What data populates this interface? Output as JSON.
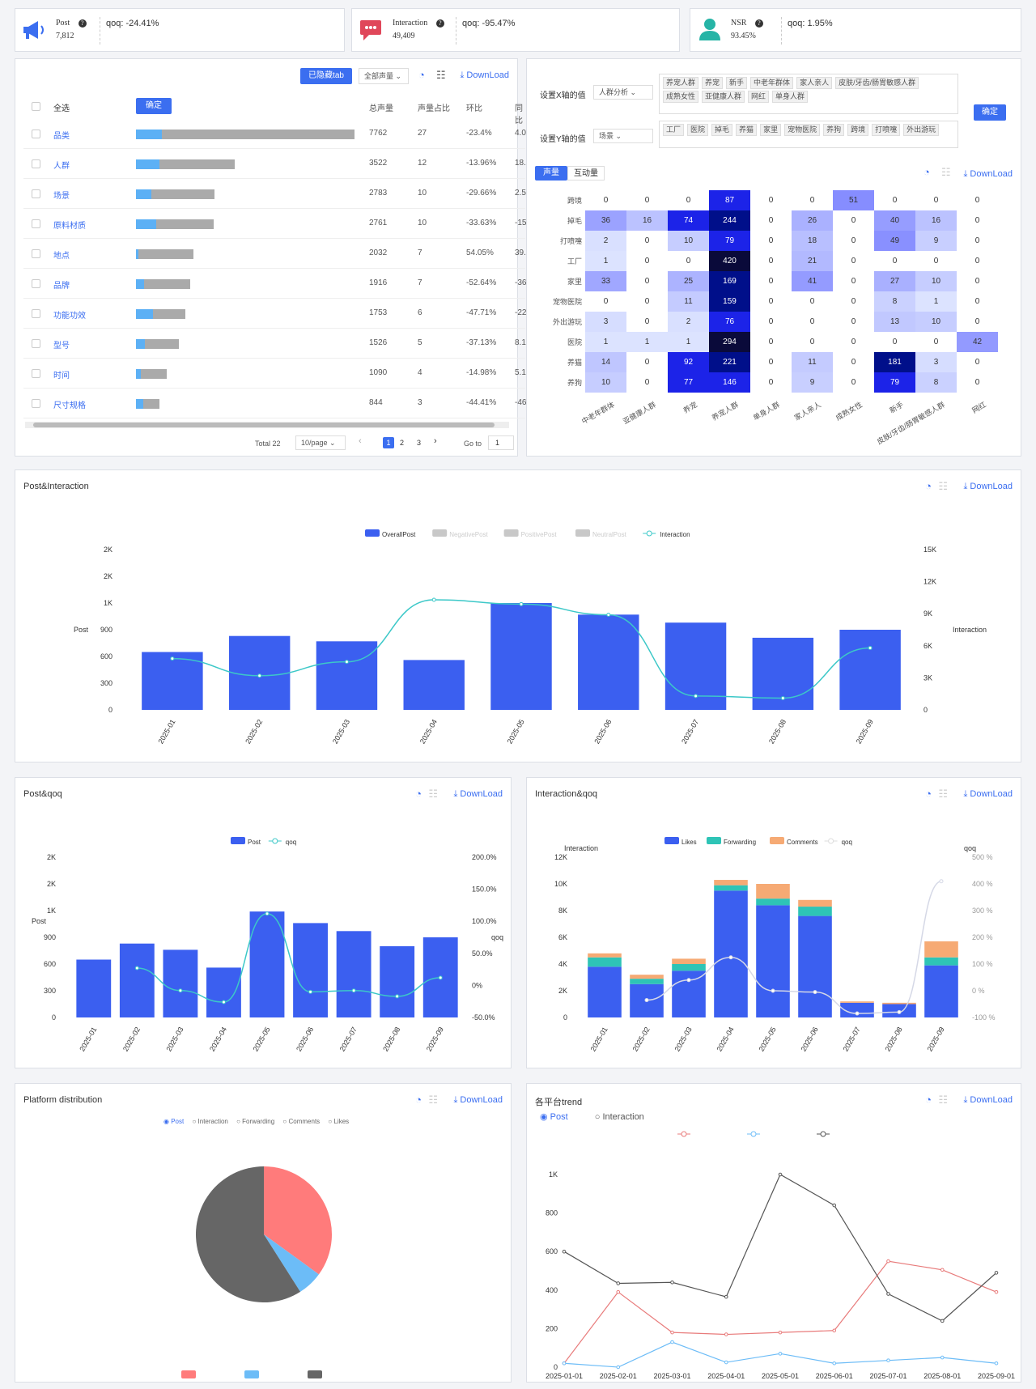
{
  "kpis": [
    {
      "label": "Post",
      "value": "7,812",
      "qoq": "qoq: -24.41%",
      "icon": "megaphone-icon",
      "color": "#3b6ef0"
    },
    {
      "label": "Interaction",
      "value": "49,409",
      "qoq": "qoq: -95.47%",
      "icon": "chat-bubble-icon",
      "color": "#e0475a"
    },
    {
      "label": "NSR",
      "value": "93.45%",
      "qoq": "qoq: 1.95%",
      "icon": "user-icon",
      "color": "#26b4a6"
    }
  ],
  "table": {
    "hidden_tab_btn": "已隐藏tab",
    "volume_select": "全部声量",
    "download": "DownLoad",
    "select_all": "全选",
    "confirm": "确定",
    "headers": [
      "总声量",
      "声量占比",
      "环比",
      "同比"
    ],
    "rows": [
      {
        "name": "品类",
        "total": "7762",
        "share": "27",
        "mom": "-23.4%",
        "yoy": "4.0",
        "barw": 1.0,
        "blue": 0.12
      },
      {
        "name": "人群",
        "total": "3522",
        "share": "12",
        "mom": "-13.96%",
        "yoy": "18.",
        "barw": 0.453,
        "blue": 0.24
      },
      {
        "name": "场景",
        "total": "2783",
        "share": "10",
        "mom": "-29.66%",
        "yoy": "2.5",
        "barw": 0.358,
        "blue": 0.2
      },
      {
        "name": "原料材质",
        "total": "2761",
        "share": "10",
        "mom": "-33.63%",
        "yoy": "-15.",
        "barw": 0.356,
        "blue": 0.26
      },
      {
        "name": "地点",
        "total": "2032",
        "share": "7",
        "mom": "54.05%",
        "yoy": "39.",
        "barw": 0.262,
        "blue": 0.03
      },
      {
        "name": "品牌",
        "total": "1916",
        "share": "7",
        "mom": "-52.64%",
        "yoy": "-36.",
        "barw": 0.247,
        "blue": 0.15
      },
      {
        "name": "功能功效",
        "total": "1753",
        "share": "6",
        "mom": "-47.71%",
        "yoy": "-22.",
        "barw": 0.226,
        "blue": 0.35
      },
      {
        "name": "型号",
        "total": "1526",
        "share": "5",
        "mom": "-37.13%",
        "yoy": "8.1",
        "barw": 0.197,
        "blue": 0.2
      },
      {
        "name": "时间",
        "total": "1090",
        "share": "4",
        "mom": "-14.98%",
        "yoy": "5.1",
        "barw": 0.14,
        "blue": 0.15
      },
      {
        "name": "尺寸规格",
        "total": "844",
        "share": "3",
        "mom": "-44.41%",
        "yoy": "-46.",
        "barw": 0.109,
        "blue": 0.3
      }
    ],
    "total": "Total 22",
    "per_page": "10/page",
    "pages": [
      "1",
      "2",
      "3"
    ],
    "goto_label": "Go to",
    "goto_value": "1"
  },
  "heatmap": {
    "x_label": "设置X轴的值",
    "x_select": "人群分析",
    "x_tags": [
      "养宠人群",
      "养宠",
      "新手",
      "中老年群体",
      "家人亲人",
      "皮肤/牙齿/肠胃敏感人群",
      "成熟女性",
      "亚健康人群",
      "网红",
      "单身人群"
    ],
    "y_label": "设置Y轴的值",
    "y_select": "场景",
    "y_tags": [
      "工厂",
      "医院",
      "掉毛",
      "养猫",
      "家里",
      "宠物医院",
      "养狗",
      "跨境",
      "打喷嚏",
      "外出游玩"
    ],
    "confirm": "确定",
    "tab1": "声量",
    "tab2": "互动量",
    "download": "DownLoad",
    "rows": [
      "跨境",
      "掉毛",
      "打喷嚏",
      "工厂",
      "家里",
      "宠物医院",
      "外出游玩",
      "医院",
      "养猫",
      "养狗"
    ],
    "cols": [
      "中老年群体",
      "亚健康人群",
      "养宠",
      "养宠人群",
      "单身人群",
      "家人亲人",
      "成熟女性",
      "新手",
      "皮肤/牙齿/肠胃敏感人群",
      "网红"
    ],
    "values": [
      [
        0,
        0,
        0,
        87,
        0,
        0,
        51,
        0,
        0,
        0
      ],
      [
        36,
        16,
        74,
        244,
        0,
        26,
        0,
        40,
        16,
        0
      ],
      [
        2,
        0,
        10,
        79,
        0,
        18,
        0,
        49,
        9,
        0
      ],
      [
        1,
        0,
        0,
        420,
        0,
        21,
        0,
        0,
        0,
        0
      ],
      [
        33,
        0,
        25,
        169,
        0,
        41,
        0,
        27,
        10,
        0
      ],
      [
        0,
        0,
        11,
        159,
        0,
        0,
        0,
        8,
        1,
        0
      ],
      [
        3,
        0,
        2,
        76,
        0,
        0,
        0,
        13,
        10,
        0
      ],
      [
        1,
        1,
        1,
        294,
        0,
        0,
        0,
        0,
        0,
        42
      ],
      [
        14,
        0,
        92,
        221,
        0,
        11,
        0,
        181,
        3,
        0
      ],
      [
        10,
        0,
        77,
        146,
        0,
        9,
        0,
        79,
        8,
        0
      ]
    ]
  },
  "post_interaction": {
    "title": "Post&Interaction",
    "download": "DownLoad",
    "chart_data": {
      "type": "bar",
      "title": "Post&Interaction",
      "legend": [
        "OverallPost",
        "NegativePost",
        "PositivePost",
        "NeutralPost",
        "Interaction"
      ],
      "categories": [
        "2025-01",
        "2025-02",
        "2025-03",
        "2025-04",
        "2025-05",
        "2025-06",
        "2025-07",
        "2025-08",
        "2025-09"
      ],
      "ylabel": "Post",
      "y2label": "Interaction",
      "yticks": [
        "0",
        "300",
        "600",
        "900",
        "1K",
        "2K",
        "2K"
      ],
      "y2ticks": [
        "0",
        "3K",
        "6K",
        "9K",
        "12K",
        "15K"
      ],
      "ylim": [
        0,
        1800
      ],
      "y2lim": [
        0,
        15000
      ],
      "series": [
        {
          "name": "OverallPost",
          "values": [
            650,
            830,
            770,
            560,
            1200,
            1070,
            980,
            810,
            900
          ]
        },
        {
          "name": "Interaction",
          "values": [
            4800,
            3200,
            4500,
            10300,
            9900,
            8900,
            1300,
            1100,
            5800
          ]
        }
      ]
    }
  },
  "post_qoq": {
    "title": "Post&qoq",
    "download": "DownLoad",
    "chart_data": {
      "type": "bar",
      "title": "Post&qoq",
      "legend": [
        "Post",
        "qoq"
      ],
      "categories": [
        "2025-01",
        "2025-02",
        "2025-03",
        "2025-04",
        "2025-05",
        "2025-06",
        "2025-07",
        "2025-08",
        "2025-09"
      ],
      "ylabel": "Post",
      "y2label": "qoq",
      "yticks": [
        "0",
        "300",
        "600",
        "900",
        "1K",
        "2K",
        "2K"
      ],
      "y2ticks": [
        "-50.0%",
        "0%",
        "50.0%",
        "100.0%",
        "150.0%",
        "200.0%"
      ],
      "ylim": [
        0,
        1800
      ],
      "y2lim": [
        -50,
        200
      ],
      "series": [
        {
          "name": "Post",
          "values": [
            650,
            830,
            760,
            560,
            1190,
            1060,
            970,
            800,
            900
          ]
        },
        {
          "name": "qoq",
          "values": [
            null,
            27,
            -8,
            -26,
            112,
            -10,
            -8,
            -17,
            12
          ]
        }
      ]
    }
  },
  "interaction_qoq": {
    "title": "Interaction&qoq",
    "download": "DownLoad",
    "chart_data": {
      "type": "bar",
      "title": "Interaction&qoq",
      "legend": [
        "Likes",
        "Forwarding",
        "Comments",
        "qoq"
      ],
      "categories": [
        "2025-01",
        "2025-02",
        "2025-03",
        "2025-04",
        "2025-05",
        "2025-06",
        "2025-07",
        "2025-08",
        "2025-09"
      ],
      "ylabel": "Interaction",
      "y2label": "qoq",
      "yticks": [
        "0",
        "2K",
        "4K",
        "6K",
        "8K",
        "10K",
        "12K"
      ],
      "y2ticks": [
        "-100 %",
        "0 %",
        "100 %",
        "200 %",
        "300 %",
        "400 %",
        "500 %"
      ],
      "ylim": [
        0,
        12000
      ],
      "y2lim": [
        -100,
        500
      ],
      "series": [
        {
          "name": "Likes",
          "values": [
            3800,
            2500,
            3500,
            9500,
            8400,
            7600,
            1100,
            1000,
            3900
          ]
        },
        {
          "name": "Forwarding",
          "values": [
            700,
            400,
            500,
            400,
            500,
            700,
            0,
            0,
            600
          ]
        },
        {
          "name": "Comments",
          "values": [
            300,
            300,
            400,
            400,
            1100,
            500,
            100,
            100,
            1200
          ]
        },
        {
          "name": "qoq",
          "values": [
            null,
            -35,
            40,
            125,
            0,
            -5,
            -85,
            -80,
            410
          ]
        }
      ]
    }
  },
  "platform": {
    "title": "Platform distribution",
    "download": "DownLoad",
    "radio": [
      "Post",
      "Interaction",
      "Forwarding",
      "Comments",
      "Likes"
    ],
    "chart_data": {
      "type": "pie",
      "values": [
        35,
        6,
        59
      ],
      "colors": [
        "#ff7b7b",
        "#6cbcf7",
        "#666666"
      ]
    }
  },
  "trend": {
    "title": "各平台trend",
    "download": "DownLoad",
    "radio": [
      "Post",
      "Interaction"
    ],
    "chart_data": {
      "type": "line",
      "x": [
        "2025-01-01",
        "2025-02-01",
        "2025-03-01",
        "2025-04-01",
        "2025-05-01",
        "2025-06-01",
        "2025-07-01",
        "2025-08-01",
        "2025-09-01"
      ],
      "yticks": [
        "0",
        "200",
        "400",
        "600",
        "800",
        "1K"
      ],
      "ylim": [
        0,
        1000
      ],
      "series": [
        {
          "color": "#e87b7b",
          "values": [
            20,
            390,
            180,
            170,
            180,
            190,
            550,
            505,
            390
          ]
        },
        {
          "color": "#6cbcf7",
          "values": [
            20,
            0,
            130,
            25,
            70,
            20,
            35,
            50,
            20
          ]
        },
        {
          "color": "#555555",
          "values": [
            600,
            435,
            440,
            365,
            1000,
            840,
            380,
            240,
            490
          ]
        }
      ]
    }
  }
}
